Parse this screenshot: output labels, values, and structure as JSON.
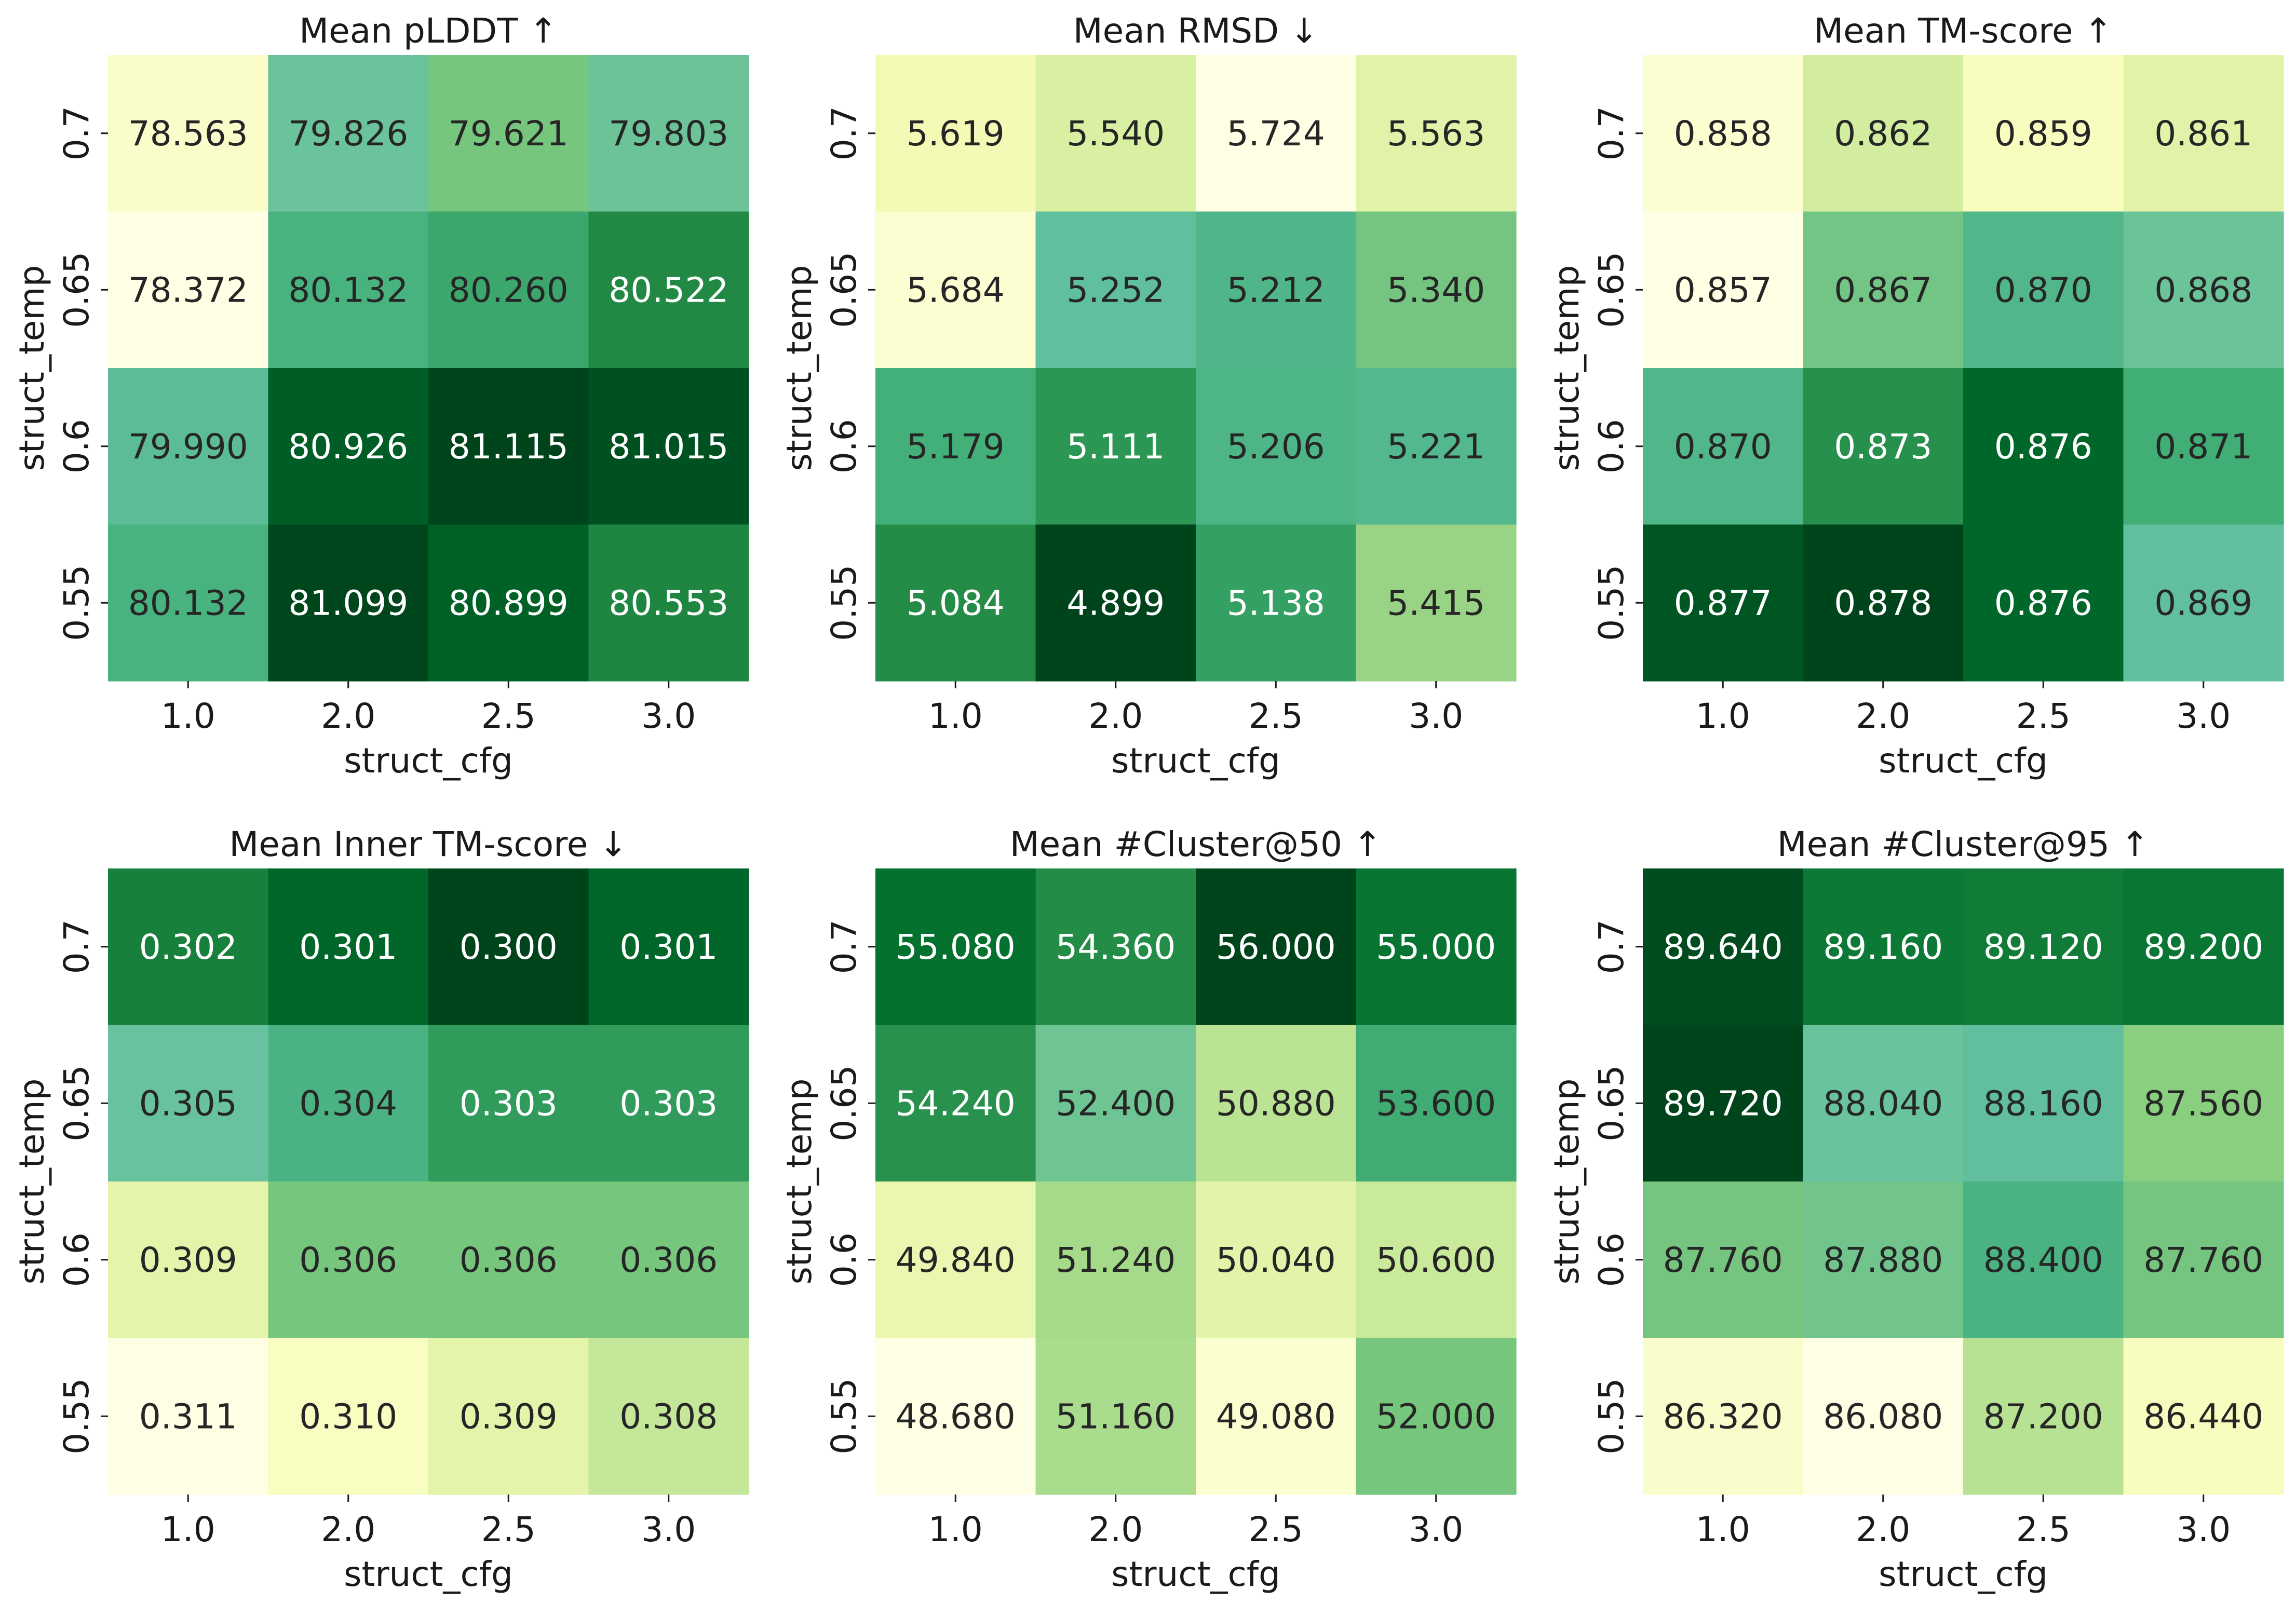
{
  "chart_data": [
    {
      "type": "heatmap",
      "title": "Mean pLDDT ↑",
      "xlabel": "struct_cfg",
      "ylabel": "struct_temp",
      "x_categories": [
        "1.0",
        "2.0",
        "2.5",
        "3.0"
      ],
      "y_categories": [
        "0.7",
        "0.65",
        "0.6",
        "0.55"
      ],
      "values": [
        [
          78.563,
          79.826,
          79.621,
          79.803
        ],
        [
          78.372,
          80.132,
          80.26,
          80.522
        ],
        [
          79.99,
          80.926,
          81.115,
          81.015
        ],
        [
          80.132,
          81.099,
          80.899,
          80.553
        ]
      ],
      "labels": [
        [
          "78.563",
          "79.826",
          "79.621",
          "79.803"
        ],
        [
          "78.372",
          "80.132",
          "80.260",
          "80.522"
        ],
        [
          "79.990",
          "80.926",
          "81.115",
          "81.015"
        ],
        [
          "80.132",
          "81.099",
          "80.899",
          "80.553"
        ]
      ],
      "colormap": "YlGn + BuGn",
      "colorbar": false
    },
    {
      "type": "heatmap",
      "title": "Mean RMSD ↓",
      "xlabel": "struct_cfg",
      "ylabel": "struct_temp",
      "x_categories": [
        "1.0",
        "2.0",
        "2.5",
        "3.0"
      ],
      "y_categories": [
        "0.7",
        "0.65",
        "0.6",
        "0.55"
      ],
      "values": [
        [
          5.619,
          5.54,
          5.724,
          5.563
        ],
        [
          5.684,
          5.252,
          5.212,
          5.34
        ],
        [
          5.179,
          5.111,
          5.206,
          5.221
        ],
        [
          5.084,
          4.899,
          5.138,
          5.415
        ]
      ],
      "labels": [
        [
          "5.619",
          "5.540",
          "5.724",
          "5.563"
        ],
        [
          "5.684",
          "5.252",
          "5.212",
          "5.340"
        ],
        [
          "5.179",
          "5.111",
          "5.206",
          "5.221"
        ],
        [
          "5.084",
          "4.899",
          "5.138",
          "5.415"
        ]
      ],
      "colormap": "YlGn + BuGn",
      "colorbar": false
    },
    {
      "type": "heatmap",
      "title": "Mean TM-score ↑",
      "xlabel": "struct_cfg",
      "ylabel": "struct_temp",
      "x_categories": [
        "1.0",
        "2.0",
        "2.5",
        "3.0"
      ],
      "y_categories": [
        "0.7",
        "0.65",
        "0.6",
        "0.55"
      ],
      "values": [
        [
          0.858,
          0.862,
          0.859,
          0.861
        ],
        [
          0.857,
          0.867,
          0.87,
          0.868
        ],
        [
          0.87,
          0.873,
          0.876,
          0.871
        ],
        [
          0.877,
          0.878,
          0.876,
          0.869
        ]
      ],
      "labels": [
        [
          "0.858",
          "0.862",
          "0.859",
          "0.861"
        ],
        [
          "0.857",
          "0.867",
          "0.870",
          "0.868"
        ],
        [
          "0.870",
          "0.873",
          "0.876",
          "0.871"
        ],
        [
          "0.877",
          "0.878",
          "0.876",
          "0.869"
        ]
      ],
      "colormap": "YlGn + BuGn",
      "colorbar": false
    },
    {
      "type": "heatmap",
      "title": "Mean Inner TM-score ↓",
      "xlabel": "struct_cfg",
      "ylabel": "struct_temp",
      "x_categories": [
        "1.0",
        "2.0",
        "2.5",
        "3.0"
      ],
      "y_categories": [
        "0.7",
        "0.65",
        "0.6",
        "0.55"
      ],
      "values": [
        [
          0.302,
          0.301,
          0.3,
          0.301
        ],
        [
          0.305,
          0.304,
          0.303,
          0.303
        ],
        [
          0.309,
          0.306,
          0.306,
          0.306
        ],
        [
          0.311,
          0.31,
          0.309,
          0.308
        ]
      ],
      "labels": [
        [
          "0.302",
          "0.301",
          "0.300",
          "0.301"
        ],
        [
          "0.305",
          "0.304",
          "0.303",
          "0.303"
        ],
        [
          "0.309",
          "0.306",
          "0.306",
          "0.306"
        ],
        [
          "0.311",
          "0.310",
          "0.309",
          "0.308"
        ]
      ],
      "colormap": "YlGn + BuGn",
      "colorbar": false
    },
    {
      "type": "heatmap",
      "title": "Mean #Cluster@50 ↑",
      "xlabel": "struct_cfg",
      "ylabel": "struct_temp",
      "x_categories": [
        "1.0",
        "2.0",
        "2.5",
        "3.0"
      ],
      "y_categories": [
        "0.7",
        "0.65",
        "0.6",
        "0.55"
      ],
      "values": [
        [
          55.08,
          54.36,
          56.0,
          55.0
        ],
        [
          54.24,
          52.4,
          50.88,
          53.6
        ],
        [
          49.84,
          51.24,
          50.04,
          50.6
        ],
        [
          48.68,
          51.16,
          49.08,
          52.0
        ]
      ],
      "labels": [
        [
          "55.080",
          "54.360",
          "56.000",
          "55.000"
        ],
        [
          "54.240",
          "52.400",
          "50.880",
          "53.600"
        ],
        [
          "49.840",
          "51.240",
          "50.040",
          "50.600"
        ],
        [
          "48.680",
          "51.160",
          "49.080",
          "52.000"
        ]
      ],
      "colormap": "YlGn + BuGn",
      "colorbar": false
    },
    {
      "type": "heatmap",
      "title": "Mean #Cluster@95 ↑",
      "xlabel": "struct_cfg",
      "ylabel": "struct_temp",
      "x_categories": [
        "1.0",
        "2.0",
        "2.5",
        "3.0"
      ],
      "y_categories": [
        "0.7",
        "0.65",
        "0.6",
        "0.55"
      ],
      "values": [
        [
          89.64,
          89.16,
          89.12,
          89.2
        ],
        [
          89.72,
          88.04,
          88.16,
          87.56
        ],
        [
          87.76,
          87.88,
          88.4,
          87.76
        ],
        [
          86.32,
          86.08,
          87.2,
          86.44
        ]
      ],
      "labels": [
        [
          "89.640",
          "89.160",
          "89.120",
          "89.200"
        ],
        [
          "89.720",
          "88.040",
          "88.160",
          "87.560"
        ],
        [
          "87.760",
          "87.880",
          "88.400",
          "87.760"
        ],
        [
          "86.320",
          "86.080",
          "87.200",
          "86.440"
        ]
      ],
      "colormap": "YlGn + BuGn",
      "colorbar": false
    }
  ],
  "palette": {
    "ylgn": [
      "#ffffe5",
      "#f7fcb9",
      "#d9f0a3",
      "#addd8e",
      "#78c679",
      "#41ab5d",
      "#238443",
      "#006837",
      "#004529"
    ],
    "bugn": [
      "#f7fcfd",
      "#e5f5f9",
      "#ccece6",
      "#99d8c9",
      "#66c2a4",
      "#41ae76",
      "#238b45",
      "#006d2c",
      "#00441b"
    ],
    "text_dark": "#262626",
    "text_light": "#ffffff",
    "axis": "#1a1a1a"
  }
}
